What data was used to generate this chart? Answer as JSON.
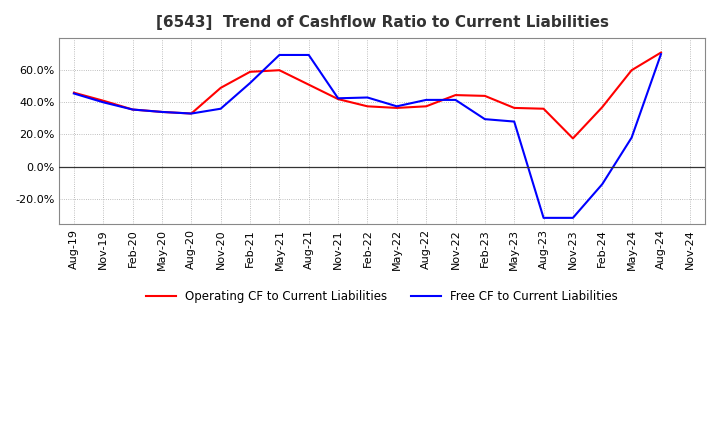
{
  "title": "[6543]  Trend of Cashflow Ratio to Current Liabilities",
  "legend_labels": [
    "Operating CF to Current Liabilities",
    "Free CF to Current Liabilities"
  ],
  "legend_colors": [
    "#ff0000",
    "#0000ff"
  ],
  "x_labels": [
    "Aug-19",
    "Nov-19",
    "Feb-20",
    "May-20",
    "Aug-20",
    "Nov-20",
    "Feb-21",
    "May-21",
    "Aug-21",
    "Nov-21",
    "Feb-22",
    "May-22",
    "Aug-22",
    "Nov-22",
    "Feb-23",
    "May-23",
    "Aug-23",
    "Nov-23",
    "Feb-24",
    "May-24",
    "Aug-24",
    "Nov-24"
  ],
  "operating_cf": [
    0.46,
    0.41,
    0.355,
    0.34,
    0.33,
    0.49,
    0.59,
    0.6,
    0.51,
    0.42,
    0.375,
    0.365,
    0.375,
    0.445,
    0.44,
    0.365,
    0.36,
    0.175,
    0.37,
    0.6,
    0.71,
    null
  ],
  "free_cf": [
    0.455,
    0.4,
    0.355,
    0.34,
    0.33,
    0.36,
    0.52,
    0.695,
    0.695,
    0.425,
    0.43,
    0.375,
    0.415,
    0.415,
    0.295,
    0.28,
    -0.32,
    -0.32,
    -0.11,
    0.18,
    0.7,
    null
  ],
  "ylim": [
    -0.36,
    0.8
  ],
  "yticks": [
    -0.2,
    0.0,
    0.2,
    0.4,
    0.6
  ],
  "grid_color": "#aaaaaa",
  "background_color": "#ffffff",
  "title_fontsize": 11,
  "tick_fontsize": 8,
  "zero_line_color": "#333333"
}
